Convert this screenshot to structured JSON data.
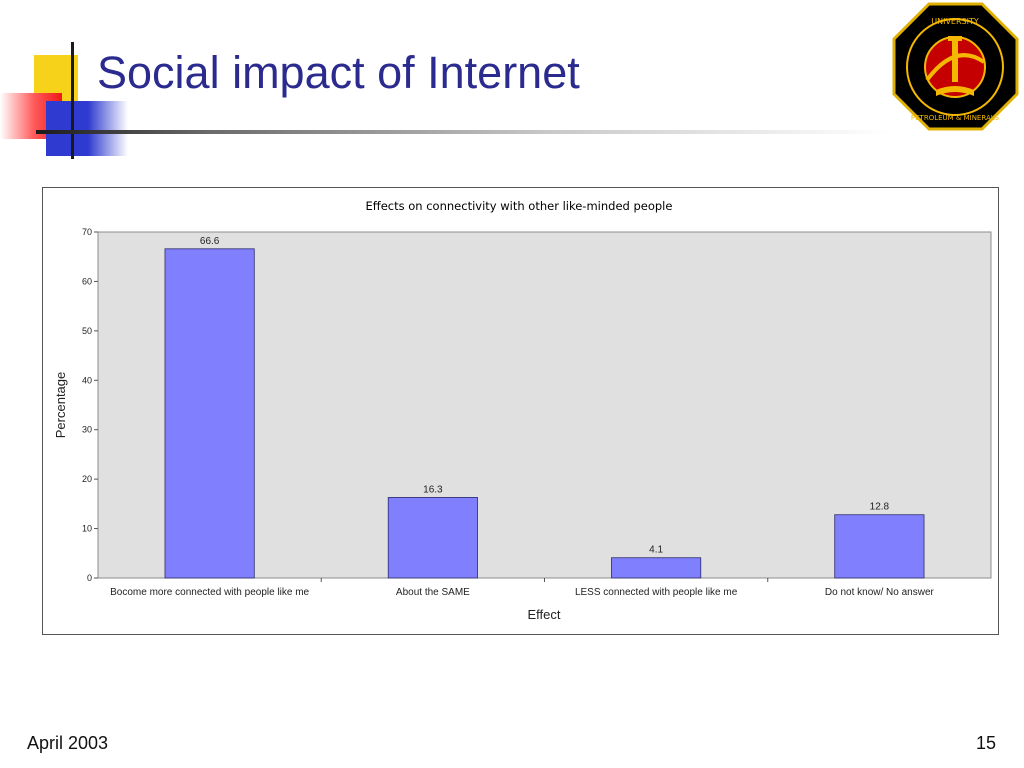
{
  "slide": {
    "title": "Social impact of Internet",
    "footer_date": "April 2003",
    "page_number": "15"
  },
  "logo": {
    "name": "university-seal-logo",
    "text": "KING FAHD UNIVERSITY OF PETROLEUM & MINERALS",
    "colors": [
      "#000000",
      "#f5b800",
      "#c40000"
    ]
  },
  "chart_data": {
    "type": "bar",
    "title": "Effects on connectivity with other like-minded people",
    "xlabel": "Effect",
    "ylabel": "Percentage",
    "categories": [
      "Bocome more connected with people like me",
      "About the SAME",
      "LESS connected with people like me",
      "Do not know/ No answer"
    ],
    "values": [
      66.6,
      16.3,
      4.1,
      12.8
    ],
    "data_labels": [
      "66.6",
      "16.3",
      "4.1",
      "12.8"
    ],
    "ylim": [
      0,
      70
    ],
    "yticks": [
      0,
      10,
      20,
      30,
      40,
      50,
      60,
      70
    ],
    "grid": false,
    "colors": {
      "bar": "#8080ff",
      "plot_background": "#e0e0e0"
    }
  }
}
